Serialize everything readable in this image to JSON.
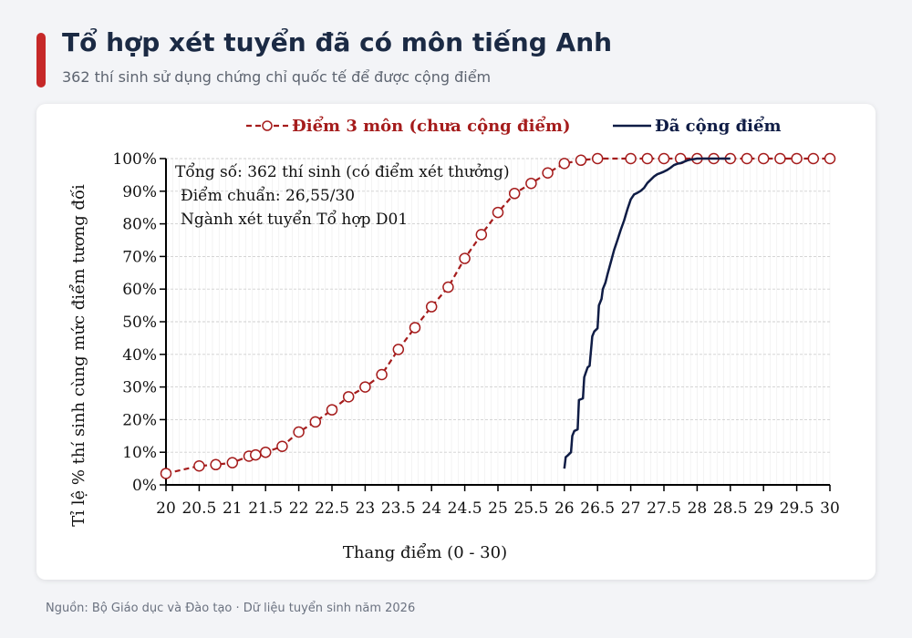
{
  "header": {
    "title": "Tổ hợp xét tuyển đã có môn tiếng Anh",
    "subtitle": "362 thí sinh sử dụng chứng chỉ quốc tế để được cộng điểm",
    "accent_color": "#c62828"
  },
  "footer": {
    "source": "Nguồn: Bộ Giáo dục và Đào tạo · Dữ liệu tuyển sinh năm 2026"
  },
  "chart_data": {
    "type": "line",
    "xlabel": "Thang điểm (0 - 30)",
    "ylabel": "Tỉ lệ % thí sinh cùng mức điểm tương đối",
    "xlim": [
      20,
      30
    ],
    "ylim": [
      0,
      100
    ],
    "x_ticks": [
      "20",
      "20.5",
      "21",
      "21.5",
      "22",
      "22.5",
      "23",
      "23.5",
      "24",
      "24.5",
      "25",
      "25.5",
      "26",
      "26.5",
      "27",
      "27.5",
      "28",
      "28.5",
      "29",
      "29.5",
      "30"
    ],
    "y_ticks": [
      "0%",
      "10%",
      "20%",
      "30%",
      "40%",
      "50%",
      "60%",
      "70%",
      "80%",
      "90%",
      "100%"
    ],
    "grid": true,
    "legend_position": "top",
    "annotation": {
      "lines": [
        "Tổng số: 362 thí sinh  (có điểm xét thưởng)",
        "Điểm chuẩn: 26,55/30",
        "Ngành xét tuyển Tổ hợp D01"
      ]
    },
    "series": [
      {
        "name": "Điểm 3 môn (chưa cộng điểm)",
        "color": "#a51c1c",
        "style": "dashed-circle-markers",
        "x": [
          20,
          20.5,
          20.75,
          21,
          21.25,
          21.35,
          21.5,
          21.75,
          22,
          22.25,
          22.5,
          22.75,
          23,
          23.25,
          23.5,
          23.75,
          24,
          24.25,
          24.5,
          24.75,
          25,
          25.25,
          25.5,
          25.75,
          26,
          26.25,
          26.5,
          27,
          27.25,
          27.5,
          27.75,
          28,
          28.25,
          28.5,
          28.75,
          29,
          29.25,
          29.5,
          29.75,
          30
        ],
        "y": [
          3.5,
          5.8,
          6.2,
          6.8,
          8.8,
          9.2,
          10,
          11.8,
          16.2,
          19.3,
          23,
          27,
          30,
          33.8,
          41.5,
          48.2,
          54.6,
          60.6,
          69.4,
          76.7,
          83.5,
          89.3,
          92.4,
          95.6,
          98.5,
          99.5,
          100,
          100,
          100,
          100,
          100,
          100,
          100,
          100,
          100,
          100,
          100,
          100,
          100,
          100
        ]
      },
      {
        "name": "Đã cộng điểm",
        "color": "#0f1c45",
        "style": "solid",
        "x": [
          26,
          26.02,
          26.05,
          26.1,
          26.12,
          26.15,
          26.2,
          26.22,
          26.28,
          26.3,
          26.35,
          26.38,
          26.42,
          26.45,
          26.5,
          26.52,
          26.56,
          26.58,
          26.62,
          26.65,
          26.7,
          26.75,
          26.8,
          26.85,
          26.9,
          26.95,
          27,
          27.05,
          27.1,
          27.15,
          27.2,
          27.25,
          27.3,
          27.35,
          27.4,
          27.45,
          27.5,
          27.55,
          27.6,
          27.65,
          27.7,
          27.75,
          27.8,
          27.85,
          27.9,
          28,
          28.1,
          28.2,
          28.3,
          28.5
        ],
        "y": [
          5,
          8.5,
          9,
          10,
          15,
          16.5,
          17,
          26,
          26.5,
          33,
          36,
          36.5,
          45.5,
          47,
          48,
          55,
          57,
          60,
          62,
          64.5,
          68.3,
          72,
          75,
          78.2,
          81,
          84.5,
          87.5,
          89,
          89.5,
          90.1,
          91,
          92.5,
          93.5,
          94.5,
          95.2,
          95.6,
          96,
          96.5,
          97.2,
          98,
          98.4,
          98.6,
          99,
          99.4,
          99.7,
          100,
          100,
          100,
          100,
          100
        ]
      }
    ]
  }
}
